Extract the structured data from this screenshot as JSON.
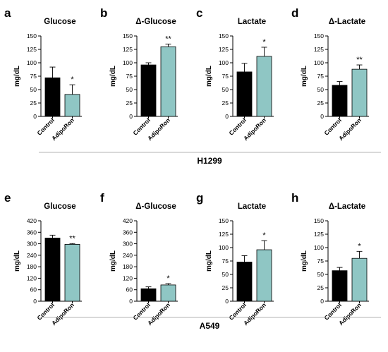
{
  "figure": {
    "rows": [
      {
        "label": "H1299"
      },
      {
        "label": "A549"
      }
    ]
  },
  "style": {
    "control_color": "#000000",
    "treatment_color": "#8fc6c4",
    "axis_color": "#000000",
    "divider_color": "#9a9a9a"
  },
  "chart_data": [
    {
      "panel": "a",
      "type": "bar",
      "title": "Glucose",
      "ylabel": "mg/dL",
      "categories": [
        "Control",
        "AdipoRon"
      ],
      "values": [
        72,
        41
      ],
      "errors": [
        20,
        18
      ],
      "significance": [
        "",
        "*"
      ],
      "ylim": [
        0,
        150
      ],
      "yticks": [
        0,
        25,
        50,
        75,
        100,
        125,
        150
      ]
    },
    {
      "panel": "b",
      "type": "bar",
      "title": "Δ-Glucose",
      "ylabel": "mg/dL",
      "categories": [
        "Control",
        "AdipoRon"
      ],
      "values": [
        96,
        130
      ],
      "errors": [
        4,
        5
      ],
      "significance": [
        "",
        "**"
      ],
      "ylim": [
        0,
        150
      ],
      "yticks": [
        0,
        25,
        50,
        75,
        100,
        125,
        150
      ]
    },
    {
      "panel": "c",
      "type": "bar",
      "title": "Lactate",
      "ylabel": "mg/dL",
      "categories": [
        "Control",
        "AdipoRon"
      ],
      "values": [
        83,
        112
      ],
      "errors": [
        16,
        17
      ],
      "significance": [
        "",
        "*"
      ],
      "ylim": [
        0,
        150
      ],
      "yticks": [
        0,
        25,
        50,
        75,
        100,
        125,
        150
      ]
    },
    {
      "panel": "d",
      "type": "bar",
      "title": "Δ-Lactate",
      "ylabel": "mg/dL",
      "categories": [
        "Control",
        "AdipoRon"
      ],
      "values": [
        58,
        88
      ],
      "errors": [
        7,
        8
      ],
      "significance": [
        "",
        "**"
      ],
      "ylim": [
        0,
        150
      ],
      "yticks": [
        0,
        25,
        50,
        75,
        100,
        125,
        150
      ]
    },
    {
      "panel": "e",
      "type": "bar",
      "title": "Glucose",
      "ylabel": "mg/dL",
      "categories": [
        "Control",
        "AdipoRon"
      ],
      "values": [
        330,
        297
      ],
      "errors": [
        15,
        4
      ],
      "significance": [
        "",
        "**"
      ],
      "ylim": [
        0,
        420
      ],
      "yticks": [
        0,
        60,
        120,
        180,
        240,
        300,
        360,
        420
      ]
    },
    {
      "panel": "f",
      "type": "bar",
      "title": "Δ-Glucose",
      "ylabel": "mg/dL",
      "categories": [
        "Control",
        "AdipoRon"
      ],
      "values": [
        65,
        85
      ],
      "errors": [
        10,
        7
      ],
      "significance": [
        "",
        "*"
      ],
      "ylim": [
        0,
        420
      ],
      "yticks": [
        0,
        60,
        120,
        180,
        240,
        300,
        360,
        420
      ]
    },
    {
      "panel": "g",
      "type": "bar",
      "title": "Lactate",
      "ylabel": "mg/dL",
      "categories": [
        "Control",
        "AdipoRon"
      ],
      "values": [
        73,
        96
      ],
      "errors": [
        12,
        17
      ],
      "significance": [
        "",
        "*"
      ],
      "ylim": [
        0,
        150
      ],
      "yticks": [
        0,
        25,
        50,
        75,
        100,
        125,
        150
      ]
    },
    {
      "panel": "h",
      "type": "bar",
      "title": "Δ-Lactate",
      "ylabel": "mg/dL",
      "categories": [
        "Control",
        "AdipoRon"
      ],
      "values": [
        57,
        80
      ],
      "errors": [
        6,
        13
      ],
      "significance": [
        "",
        "*"
      ],
      "ylim": [
        0,
        150
      ],
      "yticks": [
        0,
        25,
        50,
        75,
        100,
        125,
        150
      ]
    }
  ]
}
